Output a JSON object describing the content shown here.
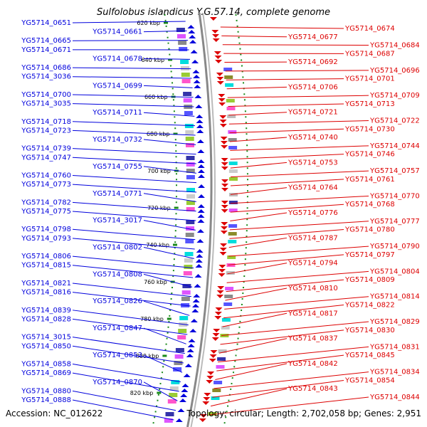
{
  "title": "Sulfolobus islandicus Y.G.57.14, complete genome",
  "accession": "Accession: NC_012622",
  "topology": "Topology: circular; Length: 2,702,058 bp; Genes: 2,951",
  "colors": {
    "forward": "#0000dd",
    "reverse": "#dd0000",
    "backbone": "#888888",
    "tick": "#1a8a1a"
  },
  "ticks": [
    "620 kbp",
    "640 kbp",
    "660 kbp",
    "680 kbp",
    "700 kbp",
    "720 kbp",
    "740 kbp",
    "760 kbp",
    "780 kbp",
    "800 kbp",
    "820 kbp"
  ],
  "left_labels": [
    "YG5714_0651",
    "YG5714_0661",
    "YG5714_0665",
    "YG5714_0671",
    "YG5714_0678",
    "YG5714_0686",
    "YG5714_3036",
    "YG5714_0699",
    "YG5714_0700",
    "YG5714_3035",
    "YG5714_0711",
    "YG5714_0718",
    "YG5714_0723",
    "YG5714_0732",
    "YG5714_0739",
    "YG5714_0747",
    "YG5714_0755",
    "YG5714_0760",
    "YG5714_0773",
    "YG5714_0771",
    "YG5714_0782",
    "YG5714_0775",
    "YG5714_3017",
    "YG5714_0798",
    "YG5714_0793",
    "YG5714_0802",
    "YG5714_0806",
    "YG5714_0815",
    "YG5714_0808",
    "YG5714_0821",
    "YG5714_0816",
    "YG5714_0826",
    "YG5714_0839",
    "YG5714_0828",
    "YG5714_0847",
    "YG5714_3015",
    "YG5714_0850",
    "YG5714_0853",
    "YG5714_0858",
    "YG5714_0869",
    "YG5714_0870",
    "YG5714_0880",
    "YG5714_0888"
  ],
  "right_labels": [
    "YG5714_0674",
    "YG5714_0677",
    "YG5714_0684",
    "YG5714_0687",
    "YG5714_0692",
    "YG5714_0696",
    "YG5714_0701",
    "YG5714_0706",
    "YG5714_0709",
    "YG5714_0713",
    "YG5714_0721",
    "YG5714_0722",
    "YG5714_0730",
    "YG5714_0740",
    "YG5714_0744",
    "YG5714_0746",
    "YG5714_0753",
    "YG5714_0757",
    "YG5714_0761",
    "YG5714_0764",
    "YG5714_0770",
    "YG5714_0768",
    "YG5714_0776",
    "YG5714_0777",
    "YG5714_0780",
    "YG5714_0787",
    "YG5714_0790",
    "YG5714_0797",
    "YG5714_0794",
    "YG5714_0804",
    "YG5714_0809",
    "YG5714_0810",
    "YG5714_0814",
    "YG5714_0822",
    "YG5714_0817",
    "YG5714_0829",
    "YG5714_0830",
    "YG5714_0837",
    "YG5714_0831",
    "YG5714_0845",
    "YG5714_0842",
    "YG5714_0834",
    "YG5714_0854",
    "YG5714_0843",
    "YG5714_0844"
  ]
}
